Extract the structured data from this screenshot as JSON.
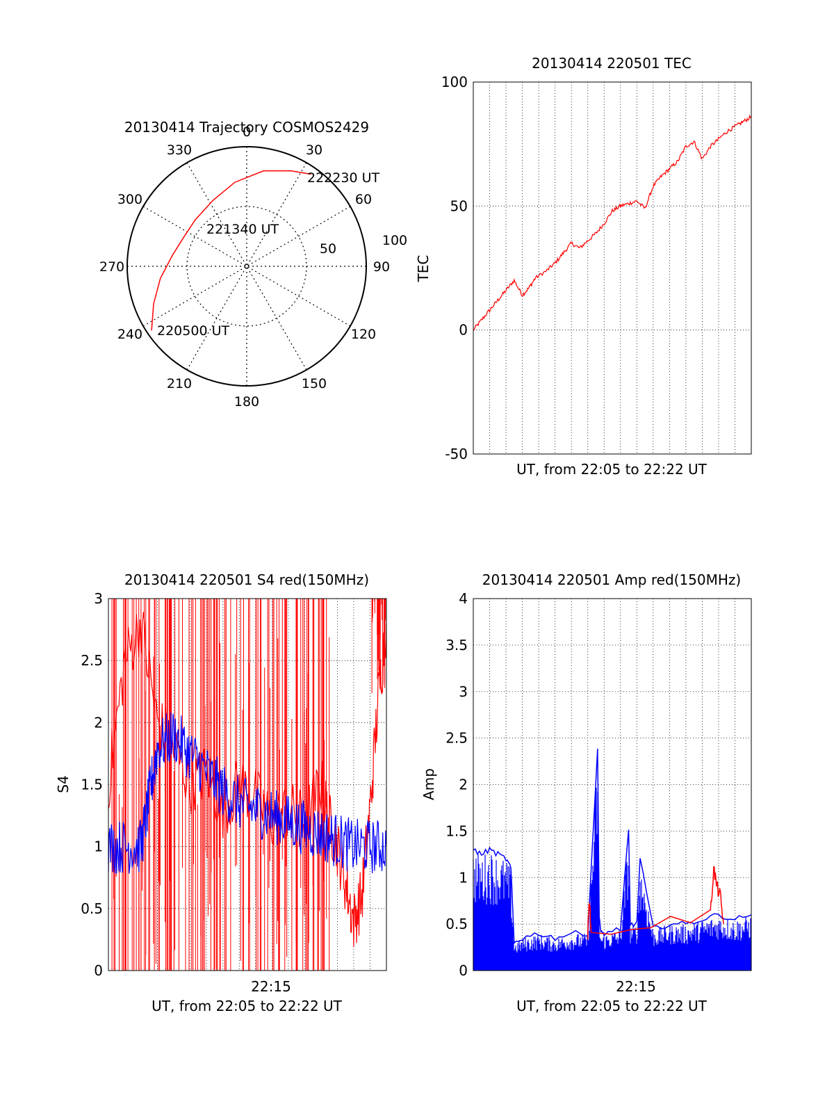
{
  "chart_data": [
    {
      "type": "scatter",
      "subtype": "polar",
      "title": "20130414 Trajectory COSMOS2429",
      "angle_ticks": [
        "0",
        "30",
        "60",
        "90",
        "120",
        "150",
        "180",
        "210",
        "240",
        "270",
        "300",
        "330"
      ],
      "radial_ticks": [
        "50",
        "100"
      ],
      "radial_range": [
        0,
        100
      ],
      "direction": "clockwise from top",
      "series": [
        {
          "color": "#ff0000",
          "azimuth_deg": [
            236,
            248,
            262,
            278,
            295,
            312,
            333,
            352,
            10,
            25,
            35
          ],
          "radius": [
            96,
            84,
            73,
            63,
            58,
            58,
            62,
            71,
            81,
            88,
            94
          ]
        }
      ],
      "annotations": [
        {
          "text": "220500 UT",
          "azimuth_deg": 236,
          "radius": 96
        },
        {
          "text": "221340 UT",
          "azimuth_deg": 338,
          "radius": 60
        },
        {
          "text": "222230 UT",
          "azimuth_deg": 35,
          "radius": 94
        }
      ]
    },
    {
      "type": "line",
      "title": "20130414 220501 TEC",
      "xlabel": "UT, from 22:05 to 22:22 UT",
      "ylabel": "TEC",
      "ylim": [
        -50,
        100
      ],
      "yticks": [
        "-50",
        "0",
        "50",
        "100"
      ],
      "grid": true,
      "series": [
        {
          "color": "#ff0000",
          "x": [
            0,
            0.5,
            1,
            1.5,
            2,
            2.5,
            3,
            3.4,
            3.8,
            4.5,
            5,
            5.5,
            6,
            6.5,
            7,
            7.5,
            8,
            8.5,
            9,
            9.5,
            10,
            10.5,
            11,
            11.5,
            12,
            12.5,
            13,
            13.5,
            14,
            14.5,
            15,
            15.5,
            16,
            16.5,
            17
          ],
          "y": [
            0,
            4,
            8,
            12,
            16,
            20,
            14,
            17,
            21,
            24,
            27,
            31,
            35,
            33,
            36,
            39,
            43,
            48,
            50,
            51,
            52,
            49,
            58,
            62,
            65,
            68,
            74,
            76,
            69,
            74,
            77,
            80,
            82,
            84,
            86
          ]
        }
      ]
    },
    {
      "type": "line",
      "title": "20130414 220501 S4 red(150MHz)",
      "xlabel": "UT, from 22:05 to 22:22 UT",
      "ylabel": "S4",
      "ylim": [
        0,
        3
      ],
      "yticks": [
        "0",
        "0.5",
        "1",
        "1.5",
        "2",
        "2.5",
        "3"
      ],
      "xticks": [
        "22:15"
      ],
      "grid": true,
      "series": [
        {
          "color": "#ff0000",
          "x": [
            0,
            1,
            2,
            3,
            4,
            5,
            6,
            7,
            8,
            9,
            10,
            11,
            12,
            13,
            13.5,
            14,
            14.5,
            15,
            15.5,
            16,
            16.5,
            17
          ],
          "y": [
            1.5,
            2.5,
            2.8,
            2.0,
            1.8,
            1.5,
            1.6,
            1.3,
            1.5,
            1.4,
            1.2,
            1.3,
            1.2,
            1.5,
            1.2,
            1.0,
            0.7,
            0.4,
            0.6,
            1.3,
            2.2,
            2.8
          ]
        },
        {
          "color": "#0000ff",
          "x": [
            0,
            1,
            2,
            2.5,
            3,
            4,
            5,
            6,
            7,
            8,
            9,
            10,
            11,
            12,
            13,
            14,
            15,
            16,
            17
          ],
          "y": [
            1.0,
            1.0,
            1.0,
            1.4,
            1.8,
            1.9,
            1.75,
            1.6,
            1.45,
            1.35,
            1.3,
            1.25,
            1.2,
            1.15,
            1.1,
            1.05,
            1.0,
            1.0,
            1.0
          ]
        }
      ]
    },
    {
      "type": "line",
      "title": "20130414 220501 Amp red(150MHz)",
      "xlabel": "UT, from 22:05 to 22:22 UT",
      "ylabel": "Amp",
      "ylim": [
        0,
        4
      ],
      "yticks": [
        "0",
        "0.5",
        "1",
        "1.5",
        "2",
        "2.5",
        "3",
        "3.5",
        "4"
      ],
      "xticks": [
        "22:15"
      ],
      "grid": true,
      "series": [
        {
          "color": "#0000ff",
          "x": [
            0,
            0.5,
            1,
            1.5,
            2,
            2.3,
            2.5,
            3,
            4,
            5,
            6,
            7,
            7.6,
            7.7,
            7.8,
            8,
            9,
            9.5,
            9.6,
            10,
            10.2,
            11,
            12,
            13,
            14,
            15,
            16,
            17
          ],
          "y": [
            1.3,
            1.25,
            1.3,
            1.25,
            1.2,
            1.1,
            0.3,
            0.35,
            0.4,
            0.35,
            0.4,
            0.4,
            2.4,
            0.6,
            0.4,
            0.4,
            0.45,
            1.5,
            0.5,
            0.5,
            1.2,
            0.45,
            0.5,
            0.5,
            0.55,
            0.6,
            0.55,
            0.6
          ]
        },
        {
          "color": "#ff0000",
          "x": [
            7,
            7.1,
            7.2,
            14.5,
            14.7,
            14.9,
            15.1,
            15.3
          ],
          "y": [
            0.4,
            0.8,
            0.4,
            0.6,
            1.1,
            0.9,
            0.8,
            0.5
          ]
        }
      ]
    }
  ]
}
